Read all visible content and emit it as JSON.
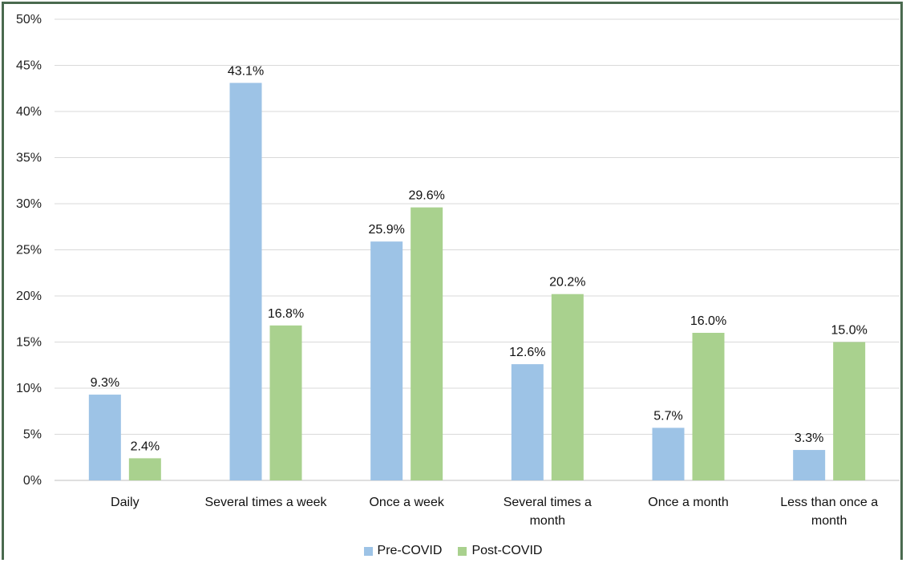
{
  "chart_data": {
    "type": "bar",
    "title": "",
    "xlabel": "",
    "ylabel": "",
    "ylim": [
      0,
      50
    ],
    "y_ticks": [
      "0%",
      "5%",
      "10%",
      "15%",
      "20%",
      "25%",
      "30%",
      "35%",
      "40%",
      "45%",
      "50%"
    ],
    "y_tick_values": [
      0,
      5,
      10,
      15,
      20,
      25,
      30,
      35,
      40,
      45,
      50
    ],
    "grid": true,
    "legend_position": "bottom",
    "categories": [
      [
        "Daily"
      ],
      [
        "Several times a week"
      ],
      [
        "Once a week"
      ],
      [
        "Several times a",
        "month"
      ],
      [
        "Once a month"
      ],
      [
        "Less than once a",
        "month"
      ]
    ],
    "series": [
      {
        "name": "Pre-COVID",
        "color": "#9dc3e6",
        "values": [
          9.3,
          43.1,
          25.9,
          12.6,
          5.7,
          3.3
        ],
        "labels": [
          "9.3%",
          "43.1%",
          "25.9%",
          "12.6%",
          "5.7%",
          "3.3%"
        ]
      },
      {
        "name": "Post-COVID",
        "color": "#a9d18e",
        "values": [
          2.4,
          16.8,
          29.6,
          20.2,
          16.0,
          15.0
        ],
        "labels": [
          "2.4%",
          "16.8%",
          "29.6%",
          "20.2%",
          "16.0%",
          "15.0%"
        ]
      }
    ]
  }
}
